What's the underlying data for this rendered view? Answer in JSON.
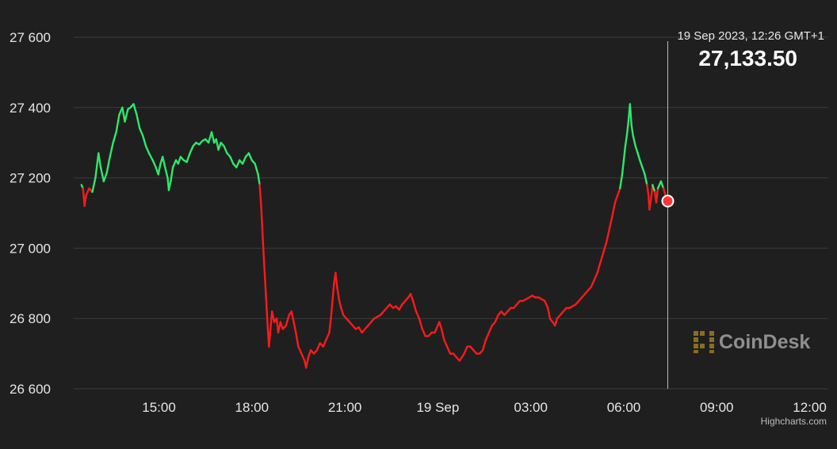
{
  "chart_data": {
    "type": "line",
    "title": "",
    "xlabel": "",
    "ylabel": "",
    "ylim": [
      26600,
      27600
    ],
    "y_ticks": [
      {
        "value": 27600,
        "label": "27 600"
      },
      {
        "value": 27400,
        "label": "27 400"
      },
      {
        "value": 27200,
        "label": "27 200"
      },
      {
        "value": 27000,
        "label": "27 000"
      },
      {
        "value": 26800,
        "label": "26 800"
      },
      {
        "value": 26600,
        "label": "26 600"
      }
    ],
    "x_ticks": [
      {
        "hour": 15,
        "label": "15:00"
      },
      {
        "hour": 18,
        "label": "18:00"
      },
      {
        "hour": 21,
        "label": "21:00"
      },
      {
        "hour": 24,
        "label": "19 Sep"
      },
      {
        "hour": 27,
        "label": "03:00"
      },
      {
        "hour": 30,
        "label": "06:00"
      },
      {
        "hour": 33,
        "label": "09:00"
      },
      {
        "hour": 36,
        "label": "12:00"
      }
    ],
    "xlim_hours": [
      12.25,
      36.6
    ],
    "reference_value": 27170,
    "colors": {
      "up": "#2ee86a",
      "down": "#ff1a1a",
      "marker": "#ff3535",
      "grid": "#3c3c3c",
      "crosshair": "#bdbdbd"
    },
    "series": [
      {
        "points": [
          [
            12.5,
            27180
          ],
          [
            12.55,
            27170
          ],
          [
            12.6,
            27120
          ],
          [
            12.65,
            27150
          ],
          [
            12.75,
            27170
          ],
          [
            12.85,
            27160
          ],
          [
            12.95,
            27200
          ],
          [
            13.05,
            27270
          ],
          [
            13.12,
            27230
          ],
          [
            13.22,
            27190
          ],
          [
            13.32,
            27215
          ],
          [
            13.42,
            27260
          ],
          [
            13.52,
            27300
          ],
          [
            13.62,
            27330
          ],
          [
            13.72,
            27380
          ],
          [
            13.82,
            27400
          ],
          [
            13.9,
            27360
          ],
          [
            14.0,
            27395
          ],
          [
            14.08,
            27400
          ],
          [
            14.18,
            27410
          ],
          [
            14.28,
            27380
          ],
          [
            14.38,
            27340
          ],
          [
            14.48,
            27320
          ],
          [
            14.58,
            27290
          ],
          [
            14.68,
            27270
          ],
          [
            14.8,
            27250
          ],
          [
            14.9,
            27230
          ],
          [
            14.98,
            27210
          ],
          [
            15.05,
            27240
          ],
          [
            15.12,
            27260
          ],
          [
            15.2,
            27230
          ],
          [
            15.28,
            27200
          ],
          [
            15.32,
            27165
          ],
          [
            15.38,
            27190
          ],
          [
            15.45,
            27230
          ],
          [
            15.55,
            27250
          ],
          [
            15.62,
            27240
          ],
          [
            15.7,
            27260
          ],
          [
            15.8,
            27250
          ],
          [
            15.9,
            27245
          ],
          [
            16.0,
            27270
          ],
          [
            16.1,
            27290
          ],
          [
            16.2,
            27300
          ],
          [
            16.3,
            27295
          ],
          [
            16.4,
            27305
          ],
          [
            16.5,
            27310
          ],
          [
            16.6,
            27300
          ],
          [
            16.7,
            27330
          ],
          [
            16.78,
            27300
          ],
          [
            16.85,
            27310
          ],
          [
            16.92,
            27280
          ],
          [
            17.0,
            27300
          ],
          [
            17.1,
            27290
          ],
          [
            17.2,
            27270
          ],
          [
            17.3,
            27260
          ],
          [
            17.4,
            27240
          ],
          [
            17.5,
            27230
          ],
          [
            17.6,
            27250
          ],
          [
            17.7,
            27240
          ],
          [
            17.8,
            27260
          ],
          [
            17.9,
            27270
          ],
          [
            18.0,
            27250
          ],
          [
            18.1,
            27240
          ],
          [
            18.2,
            27210
          ],
          [
            18.25,
            27180
          ],
          [
            18.3,
            27120
          ],
          [
            18.35,
            27030
          ],
          [
            18.4,
            26950
          ],
          [
            18.45,
            26870
          ],
          [
            18.5,
            26790
          ],
          [
            18.55,
            26720
          ],
          [
            18.6,
            26770
          ],
          [
            18.65,
            26820
          ],
          [
            18.72,
            26790
          ],
          [
            18.8,
            26800
          ],
          [
            18.85,
            26760
          ],
          [
            18.92,
            26790
          ],
          [
            19.0,
            26770
          ],
          [
            19.1,
            26780
          ],
          [
            19.2,
            26810
          ],
          [
            19.28,
            26820
          ],
          [
            19.35,
            26790
          ],
          [
            19.42,
            26760
          ],
          [
            19.5,
            26720
          ],
          [
            19.6,
            26700
          ],
          [
            19.7,
            26680
          ],
          [
            19.75,
            26660
          ],
          [
            19.82,
            26690
          ],
          [
            19.9,
            26710
          ],
          [
            20.0,
            26700
          ],
          [
            20.1,
            26710
          ],
          [
            20.2,
            26730
          ],
          [
            20.3,
            26720
          ],
          [
            20.4,
            26740
          ],
          [
            20.5,
            26760
          ],
          [
            20.55,
            26800
          ],
          [
            20.6,
            26850
          ],
          [
            20.65,
            26900
          ],
          [
            20.7,
            26930
          ],
          [
            20.75,
            26890
          ],
          [
            20.82,
            26850
          ],
          [
            20.88,
            26830
          ],
          [
            20.95,
            26810
          ],
          [
            21.05,
            26800
          ],
          [
            21.15,
            26790
          ],
          [
            21.25,
            26780
          ],
          [
            21.35,
            26770
          ],
          [
            21.45,
            26775
          ],
          [
            21.55,
            26760
          ],
          [
            21.65,
            26770
          ],
          [
            21.75,
            26780
          ],
          [
            21.85,
            26790
          ],
          [
            21.95,
            26800
          ],
          [
            22.05,
            26805
          ],
          [
            22.15,
            26810
          ],
          [
            22.25,
            26820
          ],
          [
            22.35,
            26830
          ],
          [
            22.45,
            26840
          ],
          [
            22.55,
            26830
          ],
          [
            22.65,
            26835
          ],
          [
            22.75,
            26825
          ],
          [
            22.85,
            26840
          ],
          [
            22.95,
            26850
          ],
          [
            23.05,
            26860
          ],
          [
            23.12,
            26870
          ],
          [
            23.2,
            26850
          ],
          [
            23.3,
            26820
          ],
          [
            23.4,
            26800
          ],
          [
            23.5,
            26770
          ],
          [
            23.6,
            26750
          ],
          [
            23.7,
            26750
          ],
          [
            23.8,
            26760
          ],
          [
            23.9,
            26760
          ],
          [
            24.0,
            26780
          ],
          [
            24.05,
            26790
          ],
          [
            24.12,
            26770
          ],
          [
            24.2,
            26740
          ],
          [
            24.3,
            26720
          ],
          [
            24.4,
            26700
          ],
          [
            24.5,
            26700
          ],
          [
            24.6,
            26690
          ],
          [
            24.7,
            26680
          ],
          [
            24.78,
            26690
          ],
          [
            24.85,
            26700
          ],
          [
            24.95,
            26720
          ],
          [
            25.05,
            26720
          ],
          [
            25.15,
            26710
          ],
          [
            25.25,
            26700
          ],
          [
            25.35,
            26700
          ],
          [
            25.45,
            26710
          ],
          [
            25.55,
            26740
          ],
          [
            25.65,
            26760
          ],
          [
            25.75,
            26780
          ],
          [
            25.85,
            26790
          ],
          [
            25.95,
            26810
          ],
          [
            26.05,
            26820
          ],
          [
            26.15,
            26810
          ],
          [
            26.25,
            26820
          ],
          [
            26.35,
            26830
          ],
          [
            26.45,
            26830
          ],
          [
            26.55,
            26840
          ],
          [
            26.65,
            26850
          ],
          [
            26.75,
            26850
          ],
          [
            26.85,
            26855
          ],
          [
            26.95,
            26860
          ],
          [
            27.05,
            26865
          ],
          [
            27.15,
            26860
          ],
          [
            27.25,
            26860
          ],
          [
            27.35,
            26855
          ],
          [
            27.45,
            26850
          ],
          [
            27.55,
            26830
          ],
          [
            27.62,
            26800
          ],
          [
            27.7,
            26790
          ],
          [
            27.78,
            26780
          ],
          [
            27.85,
            26800
          ],
          [
            27.95,
            26810
          ],
          [
            28.05,
            26820
          ],
          [
            28.15,
            26830
          ],
          [
            28.25,
            26830
          ],
          [
            28.35,
            26835
          ],
          [
            28.45,
            26840
          ],
          [
            28.55,
            26850
          ],
          [
            28.65,
            26860
          ],
          [
            28.75,
            26870
          ],
          [
            28.85,
            26880
          ],
          [
            28.95,
            26890
          ],
          [
            29.05,
            26910
          ],
          [
            29.15,
            26930
          ],
          [
            29.25,
            26960
          ],
          [
            29.35,
            26990
          ],
          [
            29.45,
            27020
          ],
          [
            29.55,
            27060
          ],
          [
            29.65,
            27100
          ],
          [
            29.72,
            27130
          ],
          [
            29.8,
            27150
          ],
          [
            29.88,
            27170
          ],
          [
            29.95,
            27210
          ],
          [
            30.0,
            27250
          ],
          [
            30.05,
            27290
          ],
          [
            30.1,
            27320
          ],
          [
            30.15,
            27360
          ],
          [
            30.2,
            27410
          ],
          [
            30.25,
            27350
          ],
          [
            30.3,
            27320
          ],
          [
            30.38,
            27290
          ],
          [
            30.45,
            27270
          ],
          [
            30.52,
            27250
          ],
          [
            30.6,
            27230
          ],
          [
            30.68,
            27210
          ],
          [
            30.75,
            27180
          ],
          [
            30.8,
            27150
          ],
          [
            30.83,
            27110
          ],
          [
            30.88,
            27140
          ],
          [
            30.93,
            27180
          ],
          [
            31.0,
            27160
          ],
          [
            31.05,
            27130
          ],
          [
            31.1,
            27170
          ],
          [
            31.15,
            27180
          ],
          [
            31.2,
            27190
          ],
          [
            31.28,
            27170
          ],
          [
            31.35,
            27150
          ],
          [
            31.42,
            27134
          ]
        ]
      }
    ],
    "readout": {
      "date": "19 Sep 2023, 12:26 GMT+1",
      "value": "27,133.50"
    }
  },
  "watermark": {
    "brand": "CoinDesk",
    "brand_icon": "coindesk-logo-icon"
  },
  "credits": "Highcharts.com"
}
